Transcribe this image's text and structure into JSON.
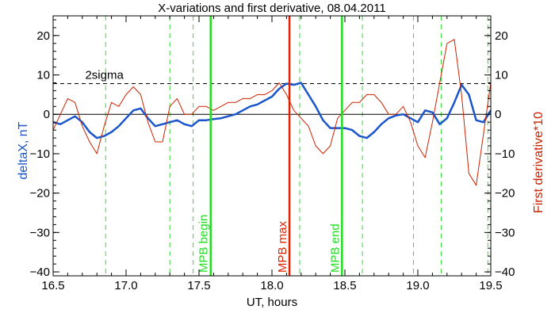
{
  "chart_data": {
    "type": "line",
    "title": "X-variations and first derivative, 08.04.2011",
    "xlabel": "UT, hours",
    "ylabel_left": "deltaX, nT",
    "ylabel_right": "First derivative*10",
    "xlim": [
      16.5,
      19.5
    ],
    "ylim": [
      -41,
      25
    ],
    "x_ticks": [
      16.5,
      17.0,
      17.5,
      18.0,
      18.5,
      19.0,
      19.5
    ],
    "x_tick_labels": [
      "16.5",
      "17.0",
      "17.5",
      "18.0",
      "18.5",
      "19.0",
      "19.5"
    ],
    "y_ticks": [
      -40,
      -30,
      -20,
      -10,
      0,
      10,
      20
    ],
    "y_tick_labels": [
      "−40",
      "−30",
      "−20",
      "−10",
      "0",
      "10",
      "20"
    ],
    "threshold": {
      "label": "2sigma",
      "value": 7.8
    },
    "zero_line": 0,
    "dashed_verticals": [
      16.86,
      17.3,
      17.46,
      18.19,
      18.62,
      18.97,
      19.16,
      19.48
    ],
    "markers": [
      {
        "label": "MPB begin",
        "x": 17.58,
        "color": "#22dd22"
      },
      {
        "label": "MPB max",
        "x": 18.12,
        "color": "#dd2200"
      },
      {
        "label": "MPB end",
        "x": 18.48,
        "color": "#22dd22"
      }
    ],
    "series": [
      {
        "axis": "left",
        "color": "#1a55cc",
        "x": [
          16.5,
          16.55,
          16.6,
          16.65,
          16.7,
          16.75,
          16.8,
          16.85,
          16.9,
          16.95,
          17.0,
          17.05,
          17.1,
          17.15,
          17.2,
          17.25,
          17.3,
          17.35,
          17.4,
          17.45,
          17.5,
          17.55,
          17.6,
          17.65,
          17.7,
          17.75,
          17.8,
          17.85,
          17.9,
          17.95,
          18.0,
          18.05,
          18.1,
          18.15,
          18.2,
          18.25,
          18.3,
          18.35,
          18.4,
          18.45,
          18.5,
          18.55,
          18.6,
          18.65,
          18.7,
          18.75,
          18.8,
          18.85,
          18.9,
          18.95,
          19.0,
          19.05,
          19.1,
          19.15,
          19.2,
          19.25,
          19.3,
          19.35,
          19.4,
          19.45,
          19.5
        ],
        "y": [
          -2,
          -2.5,
          -1.5,
          -0.5,
          -2,
          -4.5,
          -6,
          -5.5,
          -4.5,
          -3,
          -1,
          1,
          1.5,
          -1,
          -3,
          -2.5,
          -2,
          -1.5,
          -2.5,
          -3,
          -1.5,
          -1.5,
          -1.2,
          -1,
          -0.5,
          0,
          1,
          2,
          2.5,
          3.5,
          4.5,
          6.5,
          7.8,
          7.5,
          8,
          5,
          2,
          -1.5,
          -3.5,
          -3.5,
          -3.5,
          -4,
          -5.5,
          -6,
          -4.5,
          -2.5,
          -1,
          -0.3,
          0,
          -1,
          -2,
          1,
          0.5,
          -2.5,
          -1,
          3,
          7.5,
          5,
          -1.5,
          -2,
          1
        ]
      },
      {
        "axis": "right",
        "color": "#cc2200",
        "x": [
          16.5,
          16.55,
          16.6,
          16.65,
          16.7,
          16.75,
          16.8,
          16.85,
          16.9,
          16.95,
          17.0,
          17.05,
          17.1,
          17.15,
          17.2,
          17.25,
          17.3,
          17.35,
          17.4,
          17.45,
          17.5,
          17.55,
          17.6,
          17.65,
          17.7,
          17.75,
          17.8,
          17.85,
          17.9,
          17.95,
          18.0,
          18.05,
          18.1,
          18.15,
          18.2,
          18.25,
          18.3,
          18.35,
          18.4,
          18.45,
          18.5,
          18.55,
          18.6,
          18.65,
          18.7,
          18.75,
          18.8,
          18.85,
          18.9,
          18.95,
          19.0,
          19.05,
          19.1,
          19.15,
          19.2,
          19.25,
          19.3,
          19.35,
          19.4,
          19.45,
          19.5
        ],
        "y": [
          -4,
          0,
          4,
          3,
          -3,
          -7,
          -10,
          -3,
          3,
          2,
          5,
          7,
          5,
          -2,
          -7,
          -7,
          2,
          4,
          0,
          0,
          2,
          2,
          1,
          2,
          3,
          3,
          4,
          4,
          5,
          5,
          6,
          8,
          5,
          1,
          -1,
          -3,
          -8,
          -10,
          -8,
          -1,
          1,
          3,
          3,
          5,
          5,
          3,
          0,
          0,
          2,
          -2,
          -8,
          -11,
          -2,
          8,
          18,
          19,
          5,
          -15,
          -18,
          -5,
          8
        ]
      }
    ]
  }
}
